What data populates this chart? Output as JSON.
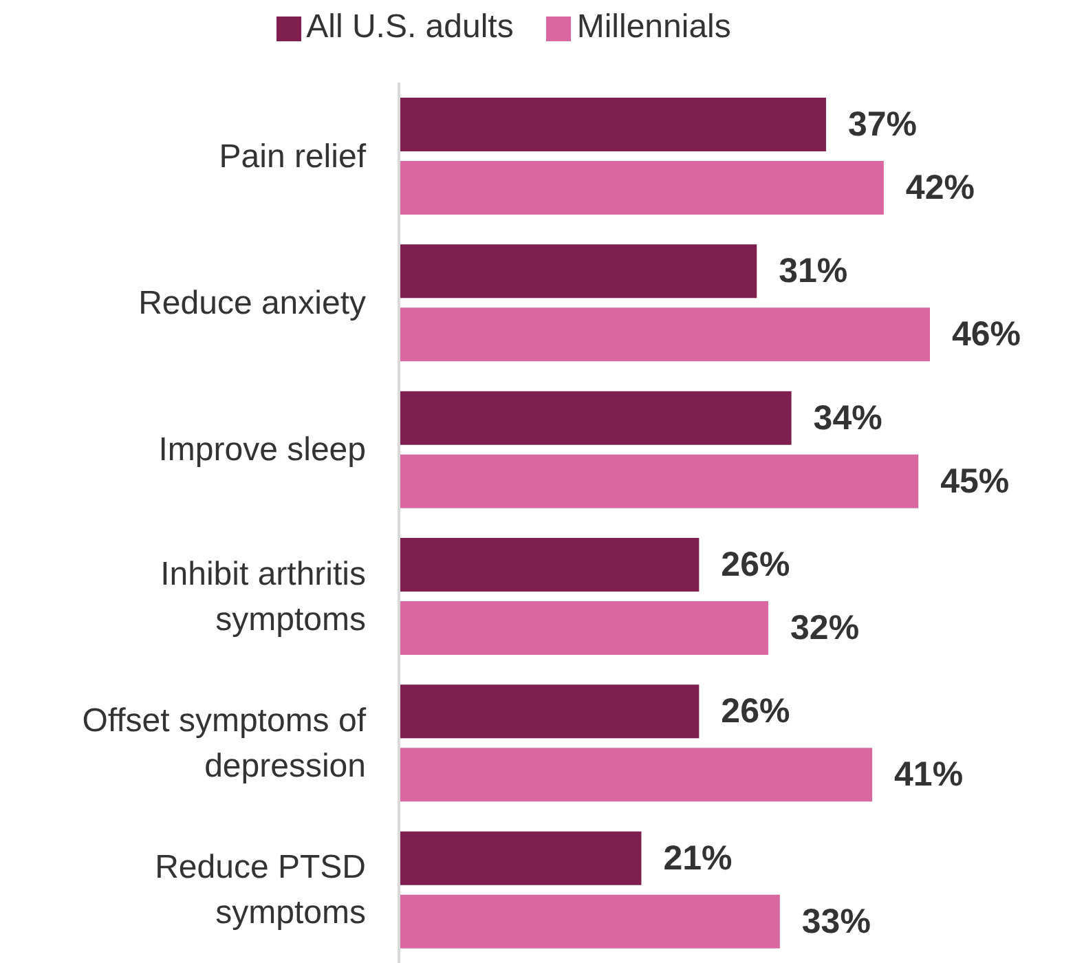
{
  "chart_data": {
    "type": "bar",
    "orientation": "horizontal",
    "legend": "top",
    "tick_labels": "y",
    "categories": [
      "Pain relief",
      "Reduce anxiety",
      "Improve sleep",
      "Inhibit arthritis symptoms",
      "Offset symptoms of depression",
      "Reduce PTSD symptoms"
    ],
    "series": [
      {
        "name": "All U.S. adults",
        "color": "#7f1f4f",
        "values": [
          37,
          31,
          34,
          26,
          26,
          21
        ],
        "value_labels": [
          "37%",
          "31%",
          "34%",
          "26%",
          "26%",
          "21%"
        ]
      },
      {
        "name": "Millennials",
        "color": "#da68a0",
        "values": [
          42,
          46,
          45,
          32,
          41,
          33
        ],
        "value_labels": [
          "42%",
          "46%",
          "45%",
          "32%",
          "41%",
          "33%"
        ]
      }
    ]
  }
}
